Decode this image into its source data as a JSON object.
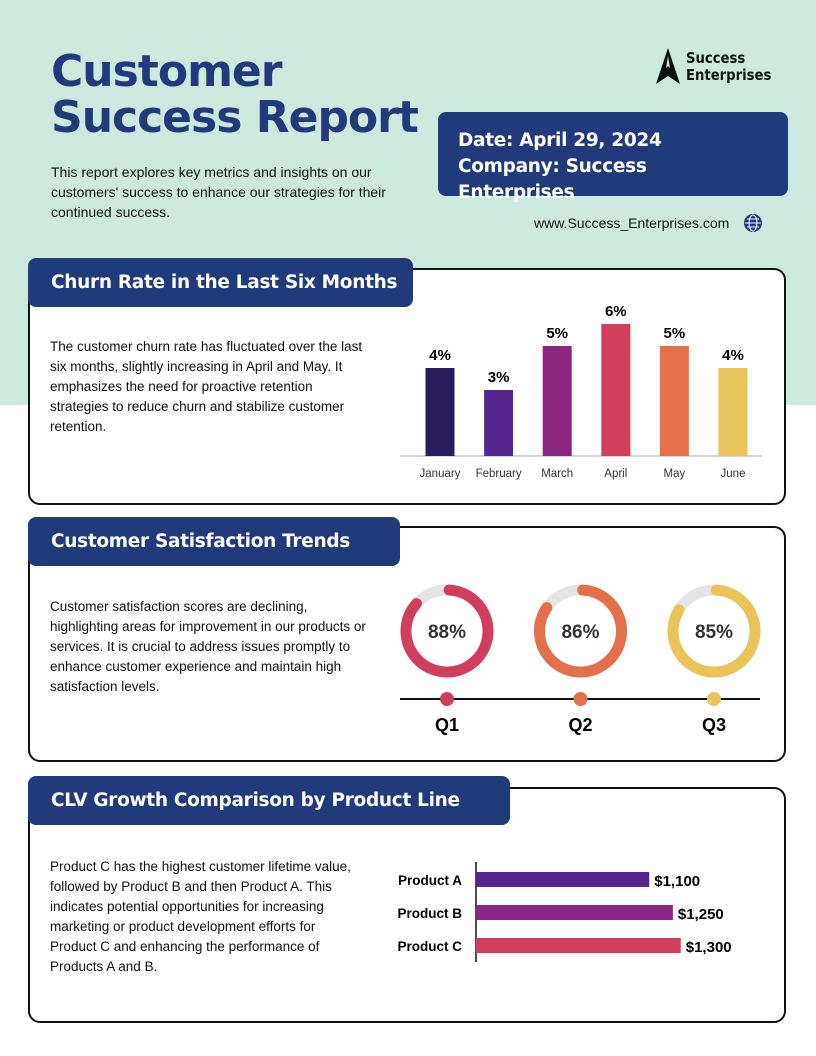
{
  "header": {
    "title_lines": [
      "Customer",
      "Success Report"
    ],
    "intro": "This report explores key metrics and insights on our customers' success to enhance our strategies for their continued success.",
    "logo_lines": [
      "Success",
      "Enterprises"
    ],
    "date": "Date: April 29, 2024",
    "company": "Company: Success Enterprises",
    "website": "www.Success_Enterprises.com",
    "website_icon": "globe-icon"
  },
  "colors": {
    "navy": "#213a7c",
    "mint": "#cde8dd"
  },
  "churn": {
    "title": "Churn Rate in the Last Six Months",
    "text": "The customer churn rate has fluctuated over the last six months, slightly increasing in April and May. It emphasizes the need for proactive retention strategies to reduce churn and stabilize customer retention."
  },
  "satisfaction": {
    "title": "Customer Satisfaction Trends",
    "text": "Customer satisfaction scores are declining, highlighting areas for improvement in our products or services. It is crucial to address issues promptly to enhance customer experience and maintain high satisfaction levels."
  },
  "clv": {
    "title": "CLV Growth Comparison by Product Line",
    "text": "Product C has the highest customer lifetime value, followed by Product B and then Product A. This indicates potential opportunities for increasing marketing or product development efforts for Product C and enhancing the performance of Products A and B."
  },
  "chart_data": [
    {
      "type": "bar",
      "categories": [
        "January",
        "February",
        "March",
        "April",
        "May",
        "June"
      ],
      "values": [
        4,
        3,
        5,
        6,
        5,
        4
      ],
      "data_labels": [
        "4%",
        "3%",
        "5%",
        "6%",
        "5%",
        "4%"
      ],
      "colors": [
        "#2a1d5c",
        "#55268f",
        "#8c2680",
        "#d13e5e",
        "#e3704a",
        "#e8c45a"
      ],
      "unit": "%"
    },
    {
      "type": "pie",
      "categories": [
        "Q1",
        "Q2",
        "Q3"
      ],
      "values": [
        88,
        86,
        85
      ],
      "data_labels": [
        "88%",
        "86%",
        "85%"
      ],
      "colors": [
        "#d13e5e",
        "#e3704a",
        "#e8c45a"
      ],
      "track_color": "#e4e4e4"
    },
    {
      "type": "bar",
      "orientation": "horizontal",
      "categories": [
        "Product A",
        "Product B",
        "Product C"
      ],
      "values": [
        1100,
        1250,
        1300
      ],
      "data_labels": [
        "$1,100",
        "$1,250",
        "$1,300"
      ],
      "colors": [
        "#55268f",
        "#8c2680",
        "#d13e5e"
      ]
    }
  ]
}
